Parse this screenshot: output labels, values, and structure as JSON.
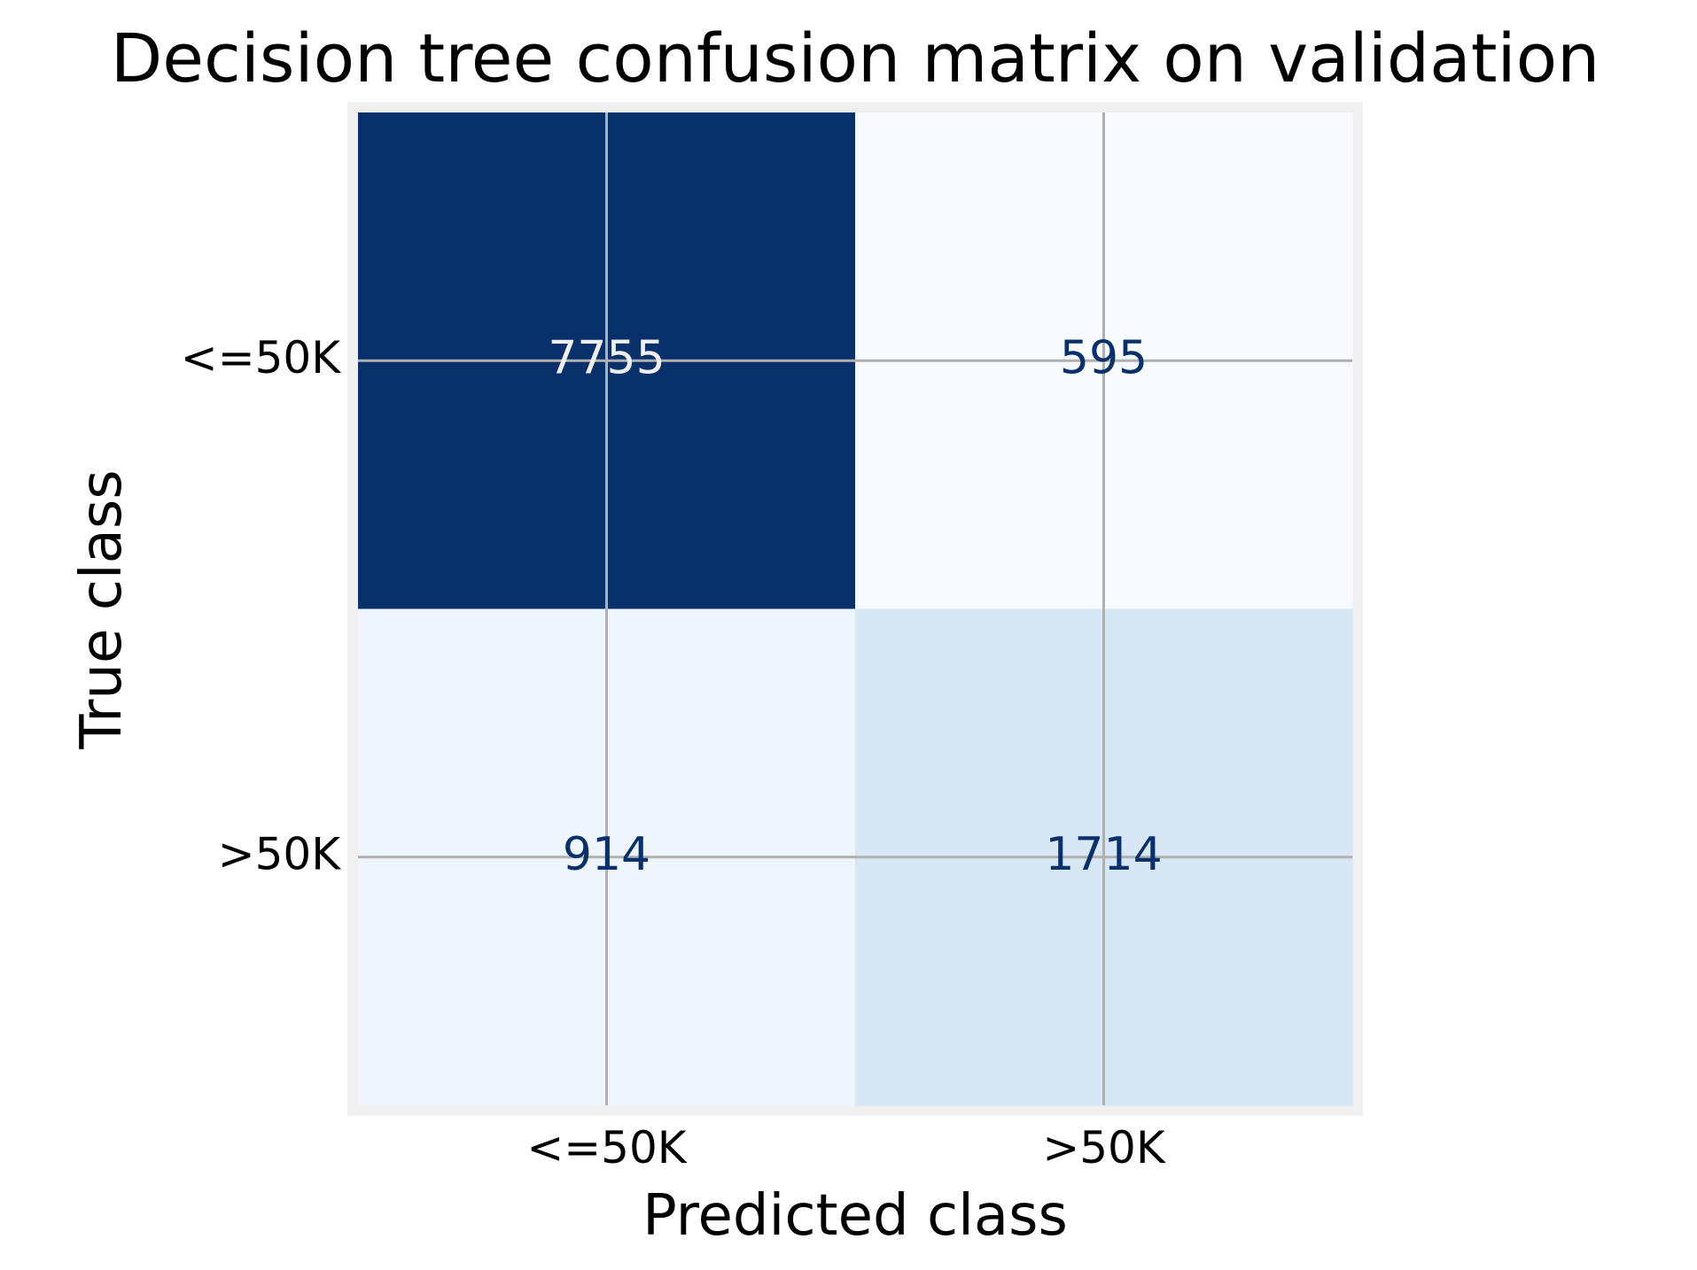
{
  "chart_data": {
    "type": "heatmap",
    "title": "Decision tree confusion matrix on validation",
    "xlabel": "Predicted class",
    "ylabel": "True class",
    "x_categories": [
      "<=50K",
      ">50K"
    ],
    "y_categories": [
      "<=50K",
      ">50K"
    ],
    "values": [
      [
        7755,
        595
      ],
      [
        914,
        1714
      ]
    ],
    "colormap": "Blues",
    "grid": true,
    "colors": {
      "frame": "#f0f0f0",
      "grid": "#b0b0b0",
      "text_dark": "#08306b",
      "text_light": "#f0f0f0",
      "cell_max": "#08306b",
      "cell_min": "#f7fbff"
    }
  }
}
